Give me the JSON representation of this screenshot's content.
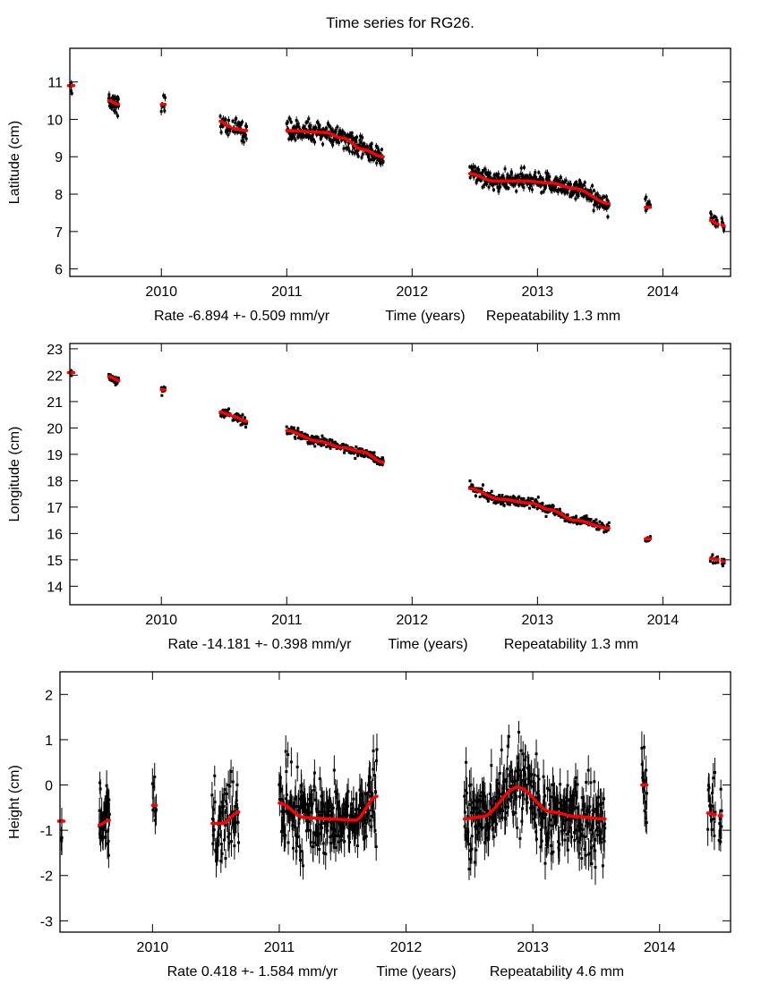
{
  "title": "Time series for RG26.",
  "chart_data": [
    {
      "type": "scatter",
      "name": "latitude",
      "ylabel": "Latitude (cm)",
      "xlabel": "Time (years)",
      "rate_label": "Rate -6.894 +- 0.509 mm/yr",
      "repeatability_label": "Repeatability 1.3 mm",
      "xlim": [
        2009.27,
        2014.54
      ],
      "ylim": [
        5.8,
        11.9
      ],
      "xticks": [
        2010,
        2011,
        2012,
        2013,
        2014
      ],
      "yticks": [
        6,
        7,
        8,
        9,
        10,
        11
      ],
      "noise_sigma": 0.13,
      "errbar": 0.08,
      "grid": false,
      "colors": {
        "data": "#000000",
        "fit": "#ff0000"
      },
      "segments": [
        {
          "t0": 2009.28,
          "t1": 2009.285,
          "n": 4,
          "fit": [
            [
              2009.28,
              10.9
            ],
            [
              2009.285,
              10.9
            ]
          ]
        },
        {
          "t0": 2009.58,
          "t1": 2009.66,
          "n": 40,
          "fit": [
            [
              2009.58,
              10.5
            ],
            [
              2009.66,
              10.4
            ]
          ]
        },
        {
          "t0": 2010.0,
          "t1": 2010.03,
          "n": 8,
          "fit": [
            [
              2010.0,
              10.4
            ],
            [
              2010.03,
              10.4
            ]
          ]
        },
        {
          "t0": 2010.47,
          "t1": 2010.55,
          "n": 25,
          "fit": [
            [
              2010.47,
              9.95
            ],
            [
              2010.55,
              9.8
            ]
          ]
        },
        {
          "t0": 2010.57,
          "t1": 2010.68,
          "n": 35,
          "fit": [
            [
              2010.57,
              9.75
            ],
            [
              2010.68,
              9.7
            ]
          ]
        },
        {
          "t0": 2011.0,
          "t1": 2011.77,
          "n": 260,
          "fit": [
            [
              2011.0,
              9.7
            ],
            [
              2011.3,
              9.65
            ],
            [
              2011.45,
              9.5
            ],
            [
              2011.6,
              9.2
            ],
            [
              2011.77,
              9.0
            ]
          ]
        },
        {
          "t0": 2012.46,
          "t1": 2013.57,
          "n": 380,
          "fit": [
            [
              2012.46,
              8.55
            ],
            [
              2012.65,
              8.35
            ],
            [
              2012.9,
              8.35
            ],
            [
              2013.1,
              8.3
            ],
            [
              2013.3,
              8.15
            ],
            [
              2013.57,
              7.75
            ]
          ]
        },
        {
          "t0": 2013.86,
          "t1": 2013.9,
          "n": 14,
          "fit": [
            [
              2013.86,
              7.65
            ],
            [
              2013.9,
              7.65
            ]
          ]
        },
        {
          "t0": 2014.38,
          "t1": 2014.44,
          "n": 16,
          "fit": [
            [
              2014.38,
              7.3
            ],
            [
              2014.44,
              7.2
            ]
          ]
        },
        {
          "t0": 2014.47,
          "t1": 2014.49,
          "n": 8,
          "fit": [
            [
              2014.47,
              7.18
            ],
            [
              2014.49,
              7.15
            ]
          ]
        }
      ]
    },
    {
      "type": "scatter",
      "name": "longitude",
      "ylabel": "Longitude (cm)",
      "xlabel": "Time (years)",
      "rate_label": "Rate -14.181 +- 0.398 mm/yr",
      "repeatability_label": "Repeatability 1.3 mm",
      "xlim": [
        2009.27,
        2014.54
      ],
      "ylim": [
        13.3,
        23.2
      ],
      "xticks": [
        2010,
        2011,
        2012,
        2013,
        2014
      ],
      "yticks": [
        14,
        15,
        16,
        17,
        18,
        19,
        20,
        21,
        22,
        23
      ],
      "noise_sigma": 0.09,
      "errbar": 0.06,
      "grid": false,
      "colors": {
        "data": "#000000",
        "fit": "#ff0000"
      },
      "segments": [
        {
          "t0": 2009.28,
          "t1": 2009.285,
          "n": 4,
          "fit": [
            [
              2009.28,
              22.1
            ],
            [
              2009.285,
              22.1
            ]
          ]
        },
        {
          "t0": 2009.58,
          "t1": 2009.66,
          "n": 40,
          "fit": [
            [
              2009.58,
              21.95
            ],
            [
              2009.66,
              21.8
            ]
          ]
        },
        {
          "t0": 2010.0,
          "t1": 2010.03,
          "n": 8,
          "fit": [
            [
              2010.0,
              21.45
            ],
            [
              2010.03,
              21.45
            ]
          ]
        },
        {
          "t0": 2010.47,
          "t1": 2010.55,
          "n": 25,
          "fit": [
            [
              2010.47,
              20.6
            ],
            [
              2010.55,
              20.5
            ]
          ]
        },
        {
          "t0": 2010.57,
          "t1": 2010.68,
          "n": 35,
          "fit": [
            [
              2010.57,
              20.45
            ],
            [
              2010.68,
              20.25
            ]
          ]
        },
        {
          "t0": 2011.0,
          "t1": 2011.77,
          "n": 260,
          "fit": [
            [
              2011.0,
              19.9
            ],
            [
              2011.25,
              19.5
            ],
            [
              2011.45,
              19.25
            ],
            [
              2011.6,
              19.1
            ],
            [
              2011.77,
              18.7
            ]
          ]
        },
        {
          "t0": 2012.46,
          "t1": 2013.57,
          "n": 380,
          "fit": [
            [
              2012.46,
              17.7
            ],
            [
              2012.7,
              17.3
            ],
            [
              2012.95,
              17.15
            ],
            [
              2013.1,
              16.9
            ],
            [
              2013.3,
              16.5
            ],
            [
              2013.57,
              16.2
            ]
          ]
        },
        {
          "t0": 2013.86,
          "t1": 2013.9,
          "n": 14,
          "fit": [
            [
              2013.86,
              15.8
            ],
            [
              2013.9,
              15.8
            ]
          ]
        },
        {
          "t0": 2014.38,
          "t1": 2014.44,
          "n": 16,
          "fit": [
            [
              2014.38,
              15.05
            ],
            [
              2014.44,
              15.02
            ]
          ]
        },
        {
          "t0": 2014.47,
          "t1": 2014.49,
          "n": 8,
          "fit": [
            [
              2014.47,
              14.97
            ],
            [
              2014.49,
              14.95
            ]
          ]
        }
      ]
    },
    {
      "type": "scatter",
      "name": "height",
      "ylabel": "Height (cm)",
      "xlabel": "Time (years)",
      "rate_label": "Rate 0.418 +- 1.584 mm/yr",
      "repeatability_label": "Repeatability 4.6 mm",
      "xlim": [
        2009.27,
        2014.56
      ],
      "ylim": [
        -3.25,
        2.5
      ],
      "xticks": [
        2010,
        2011,
        2012,
        2013,
        2014
      ],
      "yticks": [
        -3,
        -2,
        -1,
        0,
        1,
        2
      ],
      "noise_sigma": 0.42,
      "errbar": 0.3,
      "grid": false,
      "colors": {
        "data": "#000000",
        "fit": "#ff0000"
      },
      "segments": [
        {
          "t0": 2009.28,
          "t1": 2009.285,
          "n": 4,
          "fit": [
            [
              2009.28,
              -0.8
            ],
            [
              2009.285,
              -0.8
            ]
          ]
        },
        {
          "t0": 2009.58,
          "t1": 2009.66,
          "n": 40,
          "fit": [
            [
              2009.58,
              -0.88
            ],
            [
              2009.66,
              -0.78
            ]
          ]
        },
        {
          "t0": 2010.0,
          "t1": 2010.03,
          "n": 8,
          "fit": [
            [
              2010.0,
              -0.45
            ],
            [
              2010.03,
              -0.45
            ]
          ]
        },
        {
          "t0": 2010.47,
          "t1": 2010.55,
          "n": 25,
          "fit": [
            [
              2010.47,
              -0.85
            ],
            [
              2010.55,
              -0.85
            ]
          ]
        },
        {
          "t0": 2010.55,
          "t1": 2010.68,
          "n": 35,
          "fit": [
            [
              2010.55,
              -0.85
            ],
            [
              2010.68,
              -0.6
            ]
          ]
        },
        {
          "t0": 2011.0,
          "t1": 2011.77,
          "n": 260,
          "fit": [
            [
              2011.0,
              -0.4
            ],
            [
              2011.2,
              -0.72
            ],
            [
              2011.4,
              -0.75
            ],
            [
              2011.6,
              -0.78
            ],
            [
              2011.77,
              -0.25
            ]
          ]
        },
        {
          "t0": 2012.46,
          "t1": 2013.57,
          "n": 380,
          "fit": [
            [
              2012.46,
              -0.75
            ],
            [
              2012.6,
              -0.7
            ],
            [
              2012.88,
              -0.05
            ],
            [
              2013.15,
              -0.6
            ],
            [
              2013.35,
              -0.7
            ],
            [
              2013.57,
              -0.75
            ]
          ]
        },
        {
          "t0": 2013.86,
          "t1": 2013.9,
          "n": 14,
          "fit": [
            [
              2013.86,
              0.0
            ],
            [
              2013.9,
              0.0
            ]
          ]
        },
        {
          "t0": 2014.38,
          "t1": 2014.44,
          "n": 16,
          "fit": [
            [
              2014.38,
              -0.62
            ],
            [
              2014.44,
              -0.65
            ]
          ]
        },
        {
          "t0": 2014.47,
          "t1": 2014.49,
          "n": 8,
          "fit": [
            [
              2014.47,
              -0.68
            ],
            [
              2014.49,
              -0.68
            ]
          ]
        }
      ]
    }
  ]
}
